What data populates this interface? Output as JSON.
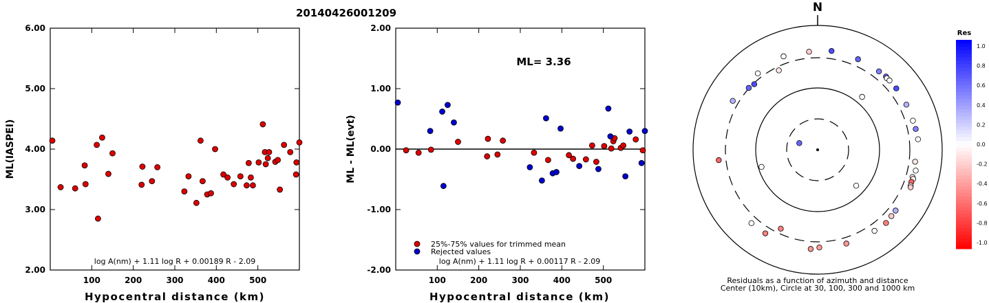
{
  "title": "20140426001209",
  "chart_data": [
    {
      "type": "scatter",
      "ylabel": "ML(IASPEI)",
      "xlabel": "Hypocentral distance (km)",
      "xlim": [
        0,
        600
      ],
      "ylim": [
        2.0,
        6.0
      ],
      "xticks": [
        "100",
        "200",
        "300",
        "400",
        "500"
      ],
      "xtick_values": [
        100,
        200,
        300,
        400,
        500
      ],
      "yticks": [
        "2.00",
        "3.00",
        "4.00",
        "5.00",
        "6.00"
      ],
      "ytick_values": [
        2,
        3,
        4,
        5,
        6
      ],
      "formula": "log A(nm) + 1.11 log R + 0.00189 R - 2.09",
      "point_color": "#dd0000",
      "points": [
        [
          5,
          4.14
        ],
        [
          25,
          3.37
        ],
        [
          60,
          3.35
        ],
        [
          83,
          3.73
        ],
        [
          85,
          3.42
        ],
        [
          112,
          4.07
        ],
        [
          115,
          2.85
        ],
        [
          125,
          4.19
        ],
        [
          140,
          3.59
        ],
        [
          150,
          3.93
        ],
        [
          220,
          3.41
        ],
        [
          222,
          3.71
        ],
        [
          245,
          3.47
        ],
        [
          258,
          3.7
        ],
        [
          323,
          3.3
        ],
        [
          333,
          3.55
        ],
        [
          352,
          3.11
        ],
        [
          362,
          4.14
        ],
        [
          367,
          3.47
        ],
        [
          378,
          3.25
        ],
        [
          387,
          3.27
        ],
        [
          397,
          4.0
        ],
        [
          417,
          3.58
        ],
        [
          427,
          3.53
        ],
        [
          442,
          3.42
        ],
        [
          458,
          3.55
        ],
        [
          473,
          3.4
        ],
        [
          478,
          3.77
        ],
        [
          483,
          3.53
        ],
        [
          488,
          3.4
        ],
        [
          502,
          3.78
        ],
        [
          512,
          4.41
        ],
        [
          517,
          3.95
        ],
        [
          519,
          3.75
        ],
        [
          524,
          3.85
        ],
        [
          527,
          3.95
        ],
        [
          542,
          3.79
        ],
        [
          548,
          3.82
        ],
        [
          553,
          3.33
        ],
        [
          563,
          4.07
        ],
        [
          578,
          3.95
        ],
        [
          592,
          3.58
        ],
        [
          593,
          3.78
        ],
        [
          600,
          4.11
        ]
      ]
    },
    {
      "type": "scatter",
      "ylabel": "ML - ML(evt)",
      "xlabel": "Hypocentral distance (km)",
      "xlim": [
        0,
        600
      ],
      "ylim": [
        -2.0,
        2.0
      ],
      "xticks": [
        "100",
        "200",
        "300",
        "400",
        "500"
      ],
      "xtick_values": [
        100,
        200,
        300,
        400,
        500
      ],
      "yticks": [
        "-2.00",
        "-1.00",
        "0.00",
        "1.00",
        "2.00"
      ],
      "ytick_values": [
        -2,
        -1,
        0,
        1,
        2
      ],
      "annotation": "ML= 3.36",
      "formula": "log A(nm) + 1.11 log R + 0.00117 R - 2.09",
      "legend": [
        "25%-75% values for trimmed mean",
        "Rejected values"
      ],
      "colors": {
        "kept": "#dd0000",
        "rejected": "#0000cc"
      },
      "kept_points": [
        [
          25,
          -0.02
        ],
        [
          55,
          -0.06
        ],
        [
          85,
          -0.01
        ],
        [
          150,
          0.12
        ],
        [
          220,
          -0.12
        ],
        [
          222,
          0.17
        ],
        [
          245,
          -0.09
        ],
        [
          258,
          0.14
        ],
        [
          333,
          -0.06
        ],
        [
          367,
          -0.18
        ],
        [
          417,
          -0.1
        ],
        [
          427,
          -0.16
        ],
        [
          458,
          -0.17
        ],
        [
          473,
          0.06
        ],
        [
          483,
          -0.21
        ],
        [
          502,
          0.05
        ],
        [
          519,
          0.01
        ],
        [
          524,
          0.13
        ],
        [
          527,
          0.18
        ],
        [
          542,
          0.02
        ],
        [
          548,
          0.06
        ],
        [
          578,
          0.16
        ],
        [
          595,
          -0.02
        ]
      ],
      "rejected_points": [
        [
          5,
          0.77
        ],
        [
          83,
          0.3
        ],
        [
          112,
          0.62
        ],
        [
          115,
          -0.61
        ],
        [
          125,
          0.73
        ],
        [
          140,
          0.44
        ],
        [
          323,
          -0.3
        ],
        [
          352,
          -0.52
        ],
        [
          362,
          0.51
        ],
        [
          378,
          -0.4
        ],
        [
          387,
          -0.38
        ],
        [
          397,
          0.34
        ],
        [
          442,
          -0.28
        ],
        [
          488,
          -0.33
        ],
        [
          512,
          0.67
        ],
        [
          517,
          0.21
        ],
        [
          553,
          -0.45
        ],
        [
          563,
          0.29
        ],
        [
          592,
          -0.23
        ],
        [
          600,
          0.3
        ]
      ]
    },
    {
      "type": "scatter",
      "subtype": "polar",
      "north_label": "N",
      "caption_line1": "Residuals as a function of azimuth and distance",
      "caption_line2": "Center (10km), Circle at 30, 100, 300 and 1000 km",
      "colorbar_title": "Res",
      "colorbar_ticks": [
        "1.0",
        "0.8",
        "0.6",
        "0.4",
        "0.2",
        "0.0",
        "-0.2",
        "-0.4",
        "-0.6",
        "-0.8",
        "-1.0"
      ],
      "rings_km": [
        30,
        100,
        300,
        1000
      ],
      "stations": [
        {
          "az": 355,
          "dist": 380,
          "res": -0.2
        },
        {
          "az": 8,
          "dist": 400,
          "res": 0.7
        },
        {
          "az": 340,
          "dist": 395,
          "res": 0.0
        },
        {
          "az": 24,
          "dist": 390,
          "res": 0.6
        },
        {
          "az": 38,
          "dist": 395,
          "res": 0.5
        },
        {
          "az": 43,
          "dist": 405,
          "res": 0.6
        },
        {
          "az": 44,
          "dist": 395,
          "res": 0.0
        },
        {
          "az": 46,
          "dist": 400,
          "res": 0.0
        },
        {
          "az": 52,
          "dist": 398,
          "res": 0.7
        },
        {
          "az": 63,
          "dist": 395,
          "res": 0.3
        },
        {
          "az": 73,
          "dist": 395,
          "res": 0.0
        },
        {
          "az": 78,
          "dist": 405,
          "res": 0.5
        },
        {
          "az": 84,
          "dist": 415,
          "res": 0.0
        },
        {
          "az": 97,
          "dist": 375,
          "res": -0.1
        },
        {
          "az": 102,
          "dist": 405,
          "res": 0.0
        },
        {
          "az": 106,
          "dist": 382,
          "res": -0.1
        },
        {
          "az": 107,
          "dist": 400,
          "res": -0.1
        },
        {
          "az": 109,
          "dist": 388,
          "res": -0.6
        },
        {
          "az": 111,
          "dist": 396,
          "res": -0.1
        },
        {
          "az": 112,
          "dist": 405,
          "res": -0.2
        },
        {
          "az": 128,
          "dist": 385,
          "res": 0.3
        },
        {
          "az": 132,
          "dist": 390,
          "res": -0.2
        },
        {
          "az": 137,
          "dist": 405,
          "res": -0.5
        },
        {
          "az": 145,
          "dist": 388,
          "res": 0.0
        },
        {
          "az": 163,
          "dist": 375,
          "res": -0.4
        },
        {
          "az": 179,
          "dist": 370,
          "res": -0.4
        },
        {
          "az": 184,
          "dist": 395,
          "res": -0.4
        },
        {
          "az": 212,
          "dist": 382,
          "res": -0.5
        },
        {
          "az": 222,
          "dist": 385,
          "res": 0.0
        },
        {
          "az": 205,
          "dist": 250,
          "res": -0.5
        },
        {
          "az": 264,
          "dist": 392,
          "res": -0.6
        },
        {
          "az": 300,
          "dist": 372,
          "res": 0.3
        },
        {
          "az": 312,
          "dist": 305,
          "res": 0.6
        },
        {
          "az": 316,
          "dist": 290,
          "res": 0.7
        },
        {
          "az": 322,
          "dist": 360,
          "res": 0.0
        },
        {
          "az": 334,
          "dist": 262,
          "res": -0.1
        },
        {
          "az": 40,
          "dist": 130,
          "res": 0.0
        },
        {
          "az": 133,
          "dist": 70,
          "res": 0.0
        },
        {
          "az": 253,
          "dist": 88,
          "res": 0.0
        },
        {
          "az": 290,
          "dist": 20,
          "res": 0.6
        }
      ]
    }
  ]
}
